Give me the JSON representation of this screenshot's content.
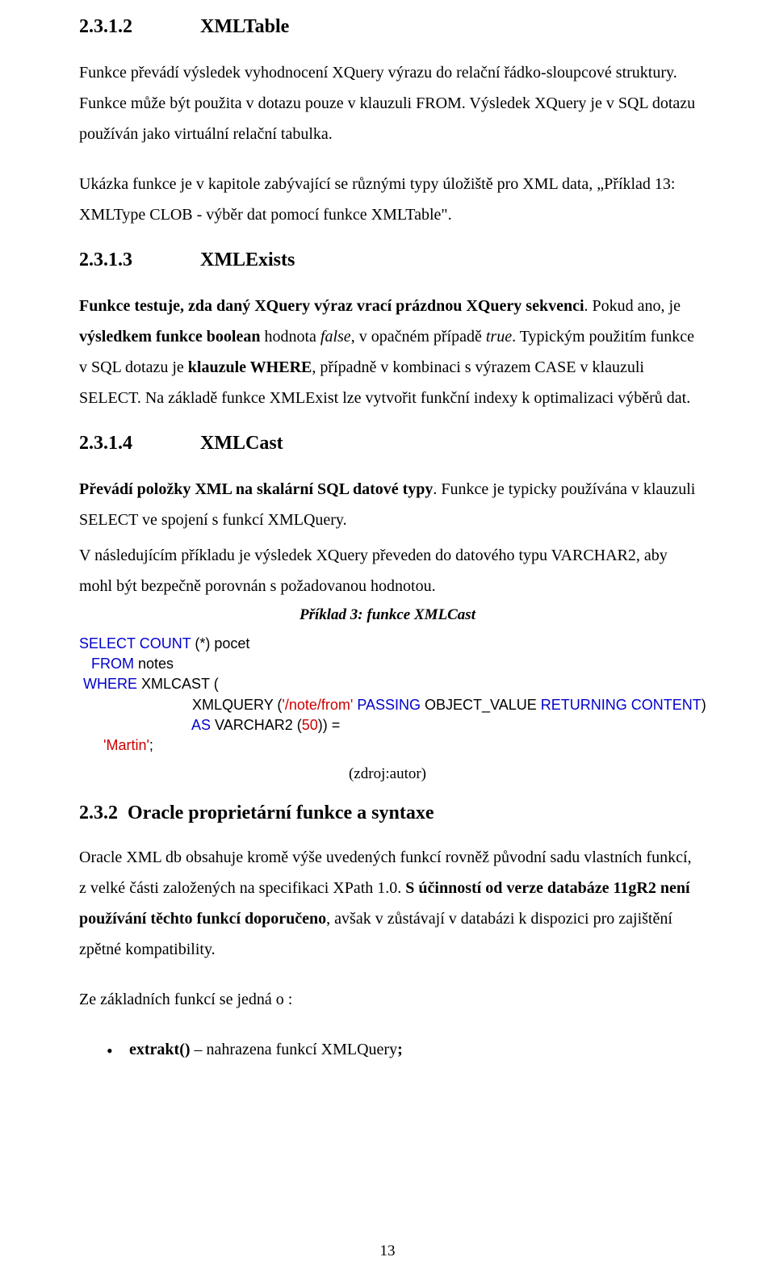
{
  "s1": {
    "num": "2.3.1.2",
    "title": "XMLTable",
    "p1a": "Funkce převádí výsledek vyhodnocení XQuery výrazu do relační řádko-sloupcové struktury. Funkce může být použita v dotazu  pouze v klauzuli FROM. Výsledek XQuery je v SQL dotazu používán jako virtuální relační tabulka.",
    "p1b": "Ukázka funkce je v kapitole zabývající se různými typy úložiště pro XML data, „",
    "p1c": "Příklad 13: XMLType CLOB - výběr dat pomocí funkce XMLTable",
    "p1d": "\"."
  },
  "s2": {
    "num": "2.3.1.3",
    "title": "XMLExists",
    "p1a": "Funkce testuje, zda daný XQuery výraz vrací prázdnou XQuery sekvenci",
    "p1b": ". Pokud ano, je ",
    "p1c": "výsledkem funkce boolean",
    "p1d": " hodnota ",
    "p1e": "false",
    "p1f": ", v opačném případě ",
    "p1g": "true",
    "p1h": ". Typickým použitím funkce v SQL dotazu je ",
    "p1i": "klauzule WHERE",
    "p1j": ", případně v kombinaci s výrazem CASE v klauzuli SELECT.  Na základě funkce XMLExist lze vytvořit funkční indexy k optimalizaci výběrů dat."
  },
  "s3": {
    "num": "2.3.1.4",
    "title": "XMLCast",
    "p1a": "Převádí položky XML na skalární SQL datové typy",
    "p1b": ". Funkce je typicky používána v klauzuli SELECT ve spojení s funkcí XMLQuery.",
    "p2": "V následujícím příkladu je výsledek XQuery převeden do datového typu VARCHAR2, aby mohl být bezpečně porovnán s požadovanou hodnotou.",
    "caption": "Příklad 3: funkce XMLCast",
    "code": {
      "l1": {
        "a": "SELECT COUNT",
        "b": " (*) pocet"
      },
      "l2": {
        "a": "   FROM",
        "b": " notes"
      },
      "l3": {
        "a": " WHERE",
        "b": " XMLCAST (",
        "c": ""
      },
      "l4": {
        "a": "                            XMLQUERY (",
        "b": "'/note/from'",
        "c": " PASSING",
        "d": " OBJECT_VALUE ",
        "e": "RETURNING CONTENT",
        "f": ")"
      },
      "l5": {
        "a": "                            AS",
        "b": " VARCHAR2 (",
        "c": "50",
        "d": ")) ="
      },
      "l6": {
        "a": "      ",
        "b": "'Martin'",
        "c": ";"
      }
    },
    "source": "(zdroj:autor)"
  },
  "s4": {
    "num": "2.3.2",
    "title": "Oracle proprietární funkce a syntaxe",
    "p1a": "Oracle XML db obsahuje kromě výše uvedených funkcí rovněž původní sadu vlastních funkcí, z velké části založených na specifikaci XPath 1.0. ",
    "p1b": "S účinností od verze databáze 11gR2 není používání těchto funkcí doporučeno",
    "p1c": ", avšak v zůstávají v databázi k dispozici pro zajištění zpětné kompatibility.",
    "p2": "Ze základních funkcí se jedná o :",
    "bullet": {
      "a": "extrakt()",
      "b": " – nahrazena funkcí XMLQuery",
      "c": ";"
    }
  },
  "pagenum": "13"
}
